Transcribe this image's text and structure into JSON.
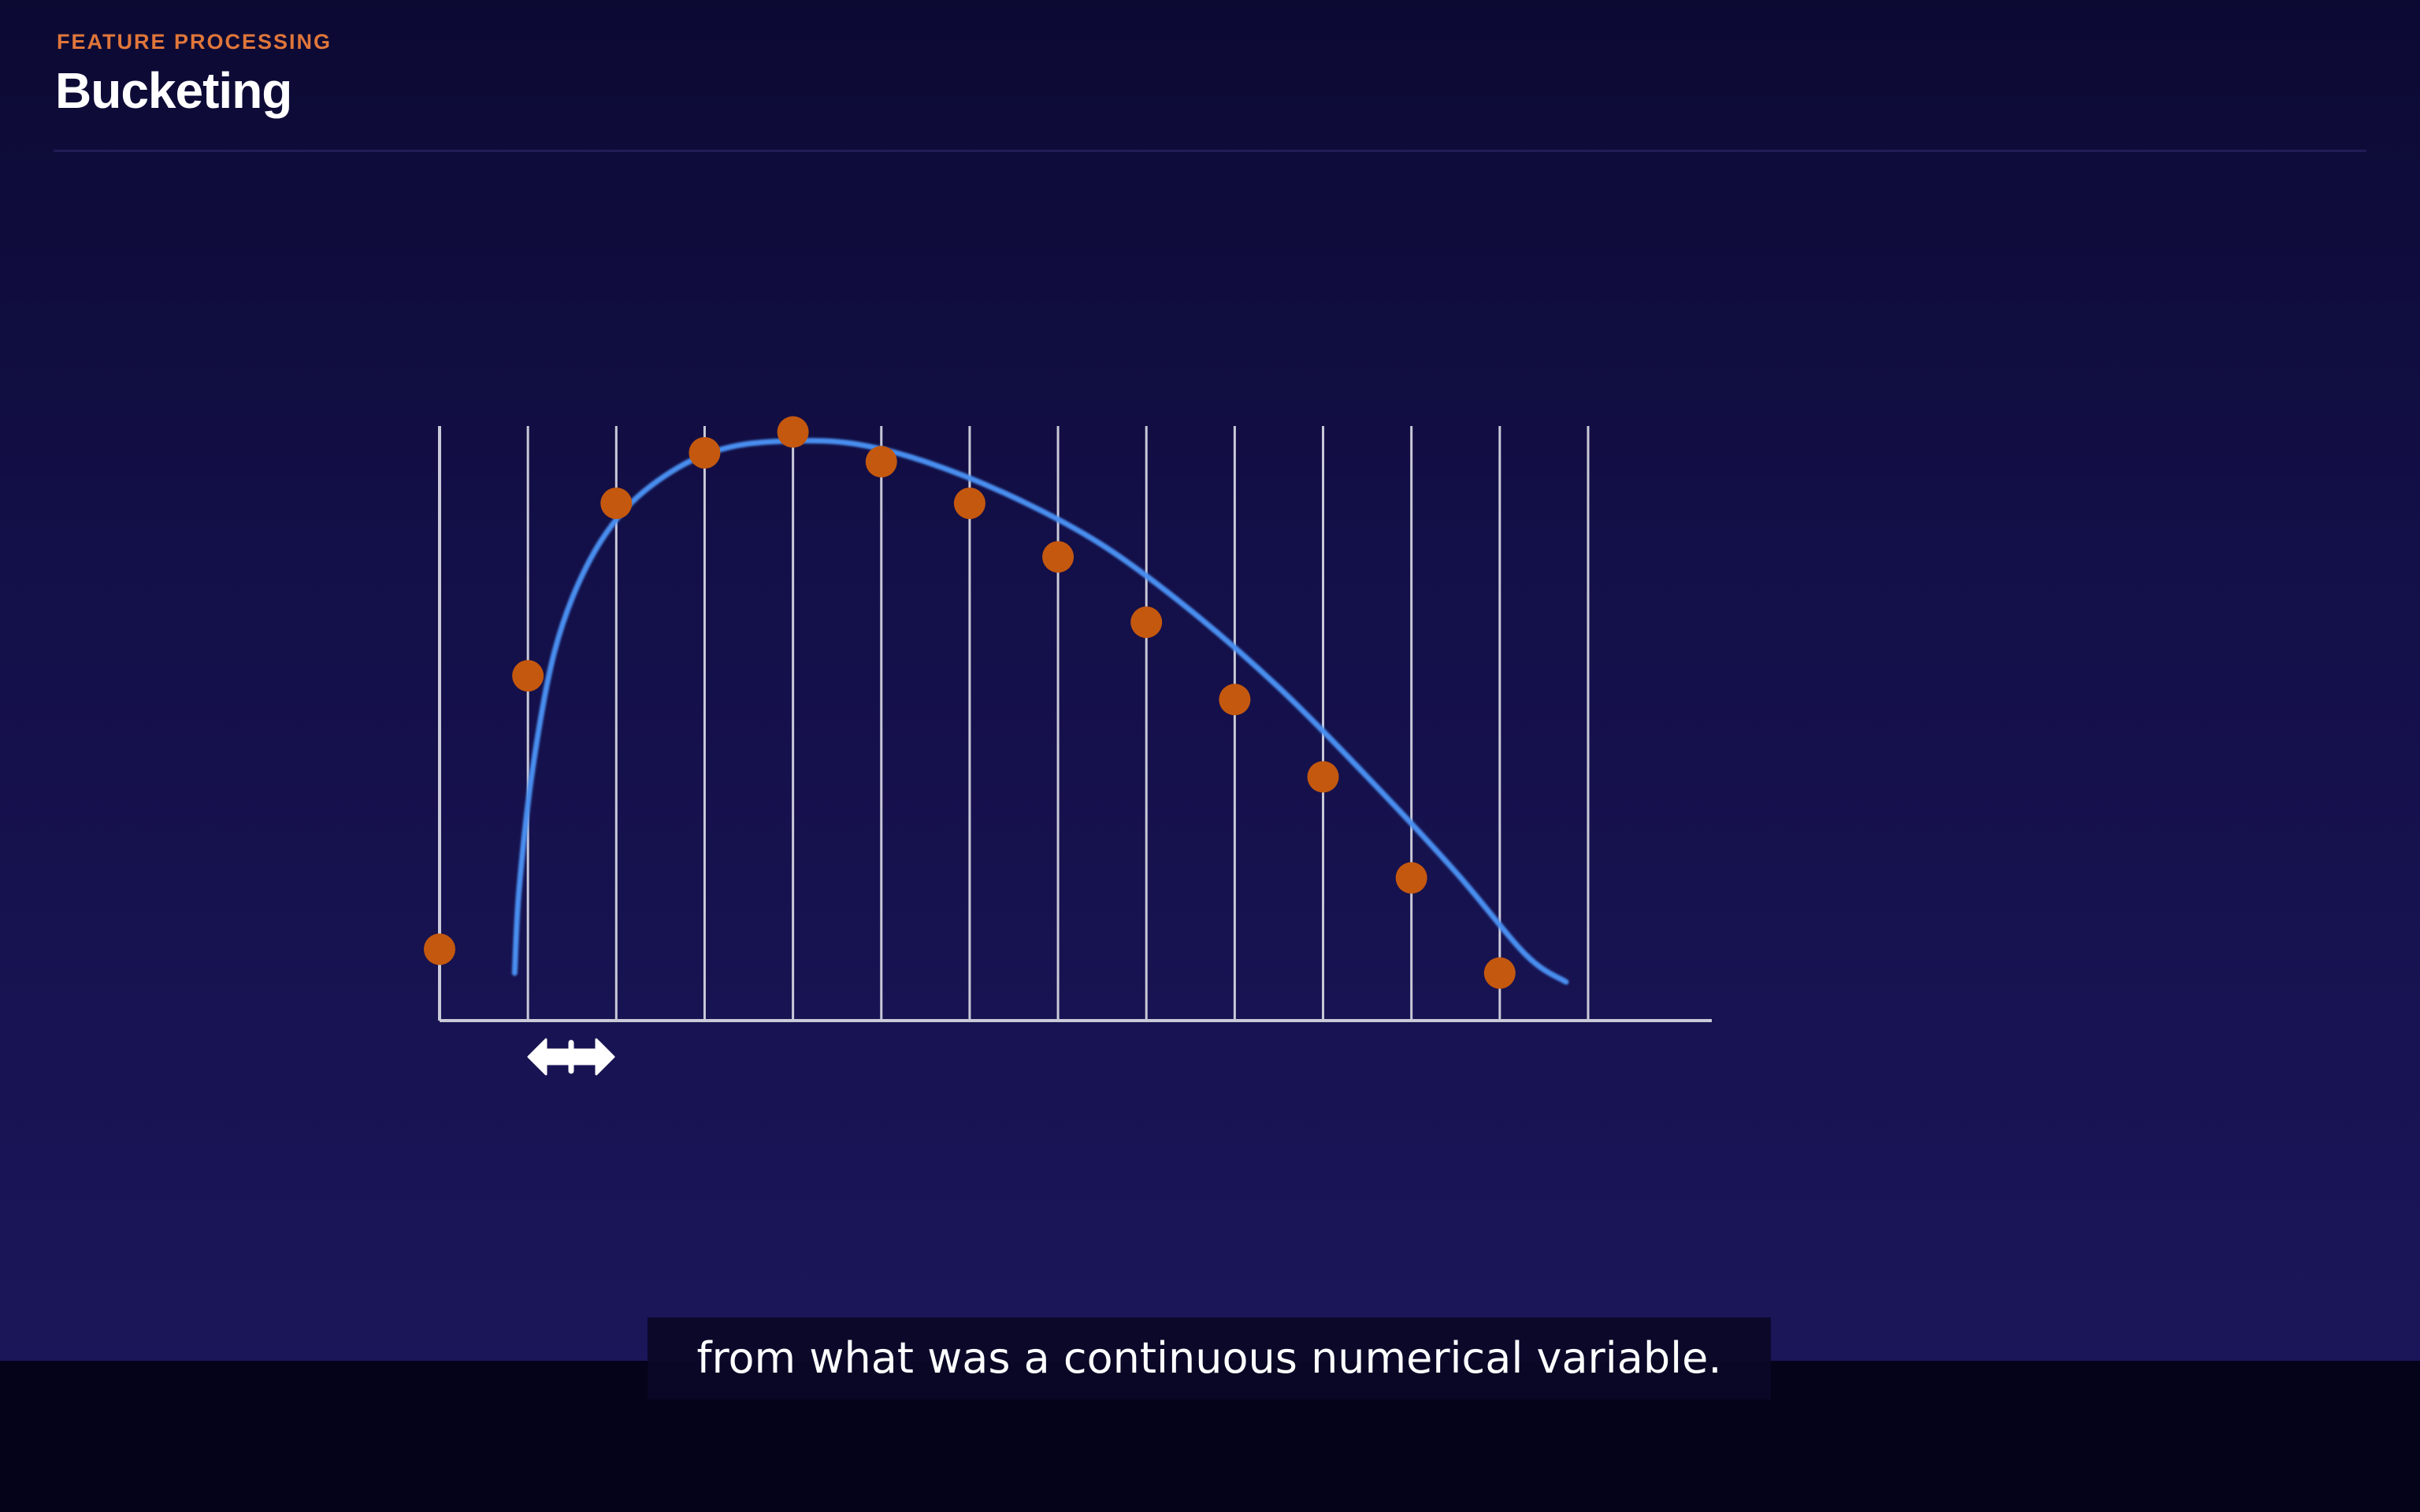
{
  "slide": {
    "kicker": "FEATURE PROCESSING",
    "title": "Bucketing"
  },
  "subtitle_caption": "from what was a continuous numerical variable.",
  "icons": {
    "bucket_width": "double-arrow-icon"
  },
  "colors": {
    "points": "#c4580e",
    "curve": "#4a8ff0",
    "grid": "#c9c9d8",
    "kicker": "#e0763a"
  },
  "chart_data": {
    "type": "scatter",
    "title": "",
    "xlabel": "",
    "ylabel": "",
    "grid": "vertical bucket boundaries",
    "bucket_count": 13,
    "xlim": [
      0,
      14.4
    ],
    "ylim": [
      0,
      100
    ],
    "points": [
      {
        "x": 0,
        "y": 12
      },
      {
        "x": 1,
        "y": 58
      },
      {
        "x": 2,
        "y": 87
      },
      {
        "x": 3,
        "y": 95.5
      },
      {
        "x": 4,
        "y": 99
      },
      {
        "x": 5,
        "y": 94
      },
      {
        "x": 6,
        "y": 87
      },
      {
        "x": 7,
        "y": 78
      },
      {
        "x": 8,
        "y": 67
      },
      {
        "x": 9,
        "y": 54
      },
      {
        "x": 10,
        "y": 41
      },
      {
        "x": 11,
        "y": 24
      },
      {
        "x": 12,
        "y": 8
      }
    ],
    "curve": [
      {
        "x": 0.85,
        "y": 8
      },
      {
        "x": 0.9,
        "y": 22
      },
      {
        "x": 1.05,
        "y": 42
      },
      {
        "x": 1.3,
        "y": 62
      },
      {
        "x": 1.65,
        "y": 76
      },
      {
        "x": 2.1,
        "y": 86
      },
      {
        "x": 2.7,
        "y": 93
      },
      {
        "x": 3.3,
        "y": 96.5
      },
      {
        "x": 4,
        "y": 97.5
      },
      {
        "x": 4.7,
        "y": 97
      },
      {
        "x": 5.5,
        "y": 94
      },
      {
        "x": 6.5,
        "y": 88
      },
      {
        "x": 7.5,
        "y": 80
      },
      {
        "x": 8.5,
        "y": 69
      },
      {
        "x": 9.5,
        "y": 56
      },
      {
        "x": 10.5,
        "y": 41
      },
      {
        "x": 11.5,
        "y": 25
      },
      {
        "x": 12.3,
        "y": 11
      },
      {
        "x": 12.75,
        "y": 6.5
      }
    ]
  }
}
